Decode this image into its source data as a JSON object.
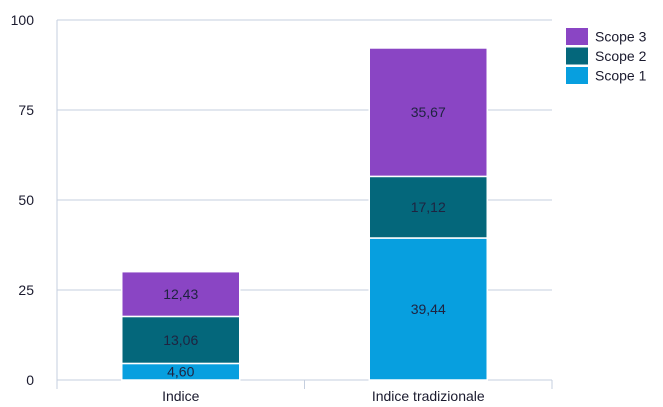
{
  "chart_data": {
    "type": "bar",
    "stacked": true,
    "categories": [
      "Indice",
      "Indice tradizionale"
    ],
    "series": [
      {
        "name": "Scope 1",
        "values": [
          4.6,
          39.44
        ],
        "labels": [
          "4,60",
          "39,44"
        ],
        "color": "#079fdf"
      },
      {
        "name": "Scope 2",
        "values": [
          13.06,
          17.12
        ],
        "labels": [
          "13,06",
          "17,12"
        ],
        "color": "#04677b"
      },
      {
        "name": "Scope 3",
        "values": [
          12.43,
          35.67
        ],
        "labels": [
          "12,43",
          "35,67"
        ],
        "color": "#8a45c4"
      }
    ],
    "yticks": [
      0,
      25,
      50,
      75,
      100
    ],
    "ylim": [
      0,
      100
    ],
    "grid": true,
    "legend": "top-right",
    "legend_order": [
      "Scope 3",
      "Scope 2",
      "Scope 1"
    ],
    "title": "",
    "xlabel": "",
    "ylabel": ""
  }
}
